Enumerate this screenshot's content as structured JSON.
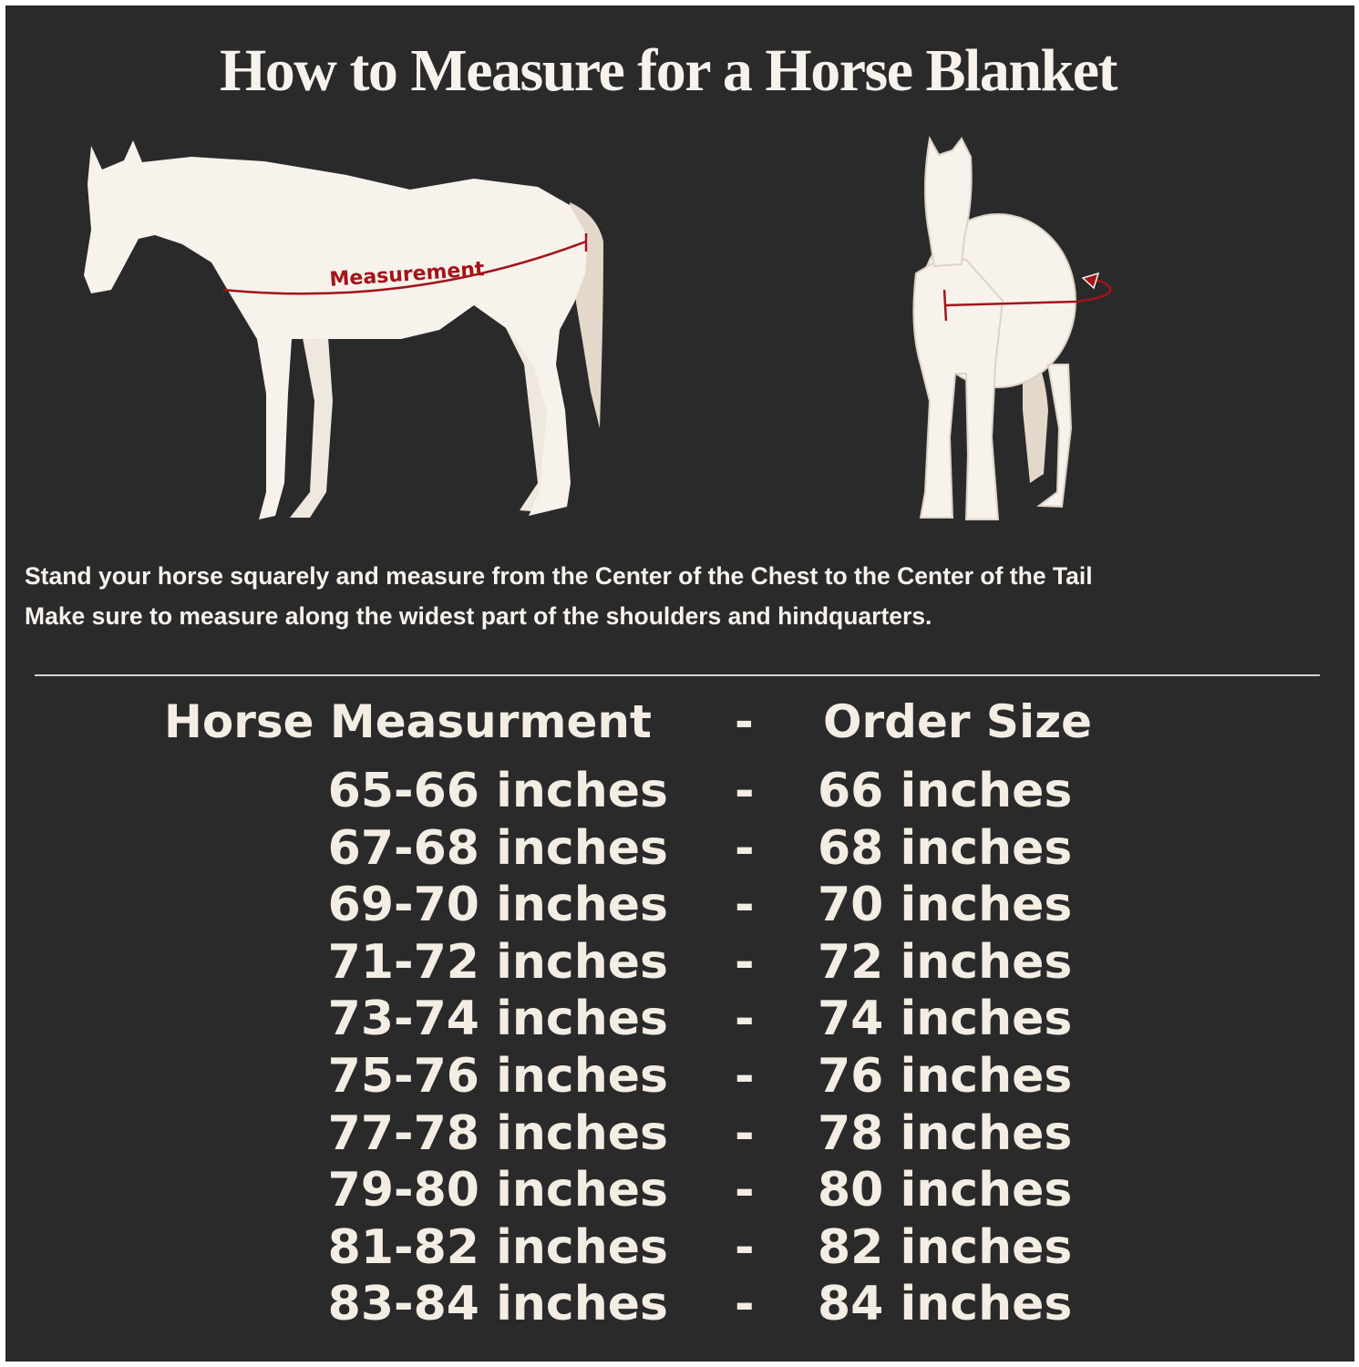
{
  "title": "How to Measure for a Horse Blanket",
  "diagram": {
    "measurement_label": "Measurement",
    "colors": {
      "background": "#2b2a2b",
      "horse": "#f7f2ec",
      "tail": "#e3d8ca",
      "measure_line": "#a3141b"
    }
  },
  "instructions": [
    "Stand your horse squarely and measure from the Center of the Chest to the Center of the Tail",
    "Make sure to measure along the widest part of the shoulders and hindquarters."
  ],
  "size_table": {
    "header_left": "Horse Measurment",
    "header_sep": "-",
    "header_right": "Order Size",
    "rows": [
      {
        "measurement": "65-66 inches",
        "sep": "-",
        "size": "66 inches"
      },
      {
        "measurement": "67-68 inches",
        "sep": "-",
        "size": "68 inches"
      },
      {
        "measurement": "69-70 inches",
        "sep": "-",
        "size": "70 inches"
      },
      {
        "measurement": "71-72 inches",
        "sep": "-",
        "size": "72 inches"
      },
      {
        "measurement": "73-74 inches",
        "sep": "-",
        "size": "74 inches"
      },
      {
        "measurement": "75-76 inches",
        "sep": "-",
        "size": "76 inches"
      },
      {
        "measurement": "77-78 inches",
        "sep": "-",
        "size": "78 inches"
      },
      {
        "measurement": "79-80 inches",
        "sep": "-",
        "size": "80 inches"
      },
      {
        "measurement": "81-82 inches",
        "sep": "-",
        "size": "82 inches"
      },
      {
        "measurement": "83-84 inches",
        "sep": "-",
        "size": "84 inches"
      }
    ]
  }
}
